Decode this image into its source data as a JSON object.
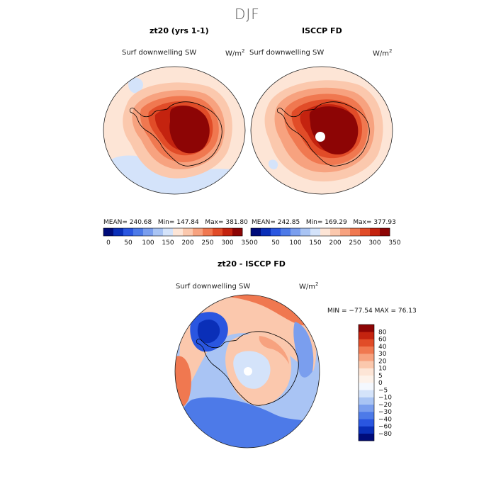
{
  "season_title": "DJF",
  "panels": [
    {
      "title": "zt20 (yrs 1-1)",
      "variable": "Surf downwelling SW",
      "units_base": "W/m",
      "units_exp": "2",
      "mean_label": "MEAN=",
      "mean": "240.68",
      "min_label": "Min=",
      "min": "147.84",
      "max_label": "Max=",
      "max": "381.80"
    },
    {
      "title": "ISCCP FD",
      "variable": "Surf downwelling SW",
      "units_base": "W/m",
      "units_exp": "2",
      "mean_label": "MEAN=",
      "mean": "242.85",
      "min_label": "Min=",
      "min": "169.29",
      "max_label": "Max=",
      "max": "377.93"
    }
  ],
  "abs_colorbar": {
    "colors": [
      "#000c7a",
      "#0a2fb8",
      "#2a56e0",
      "#4d7ae8",
      "#7a9eee",
      "#a9c4f4",
      "#d4e3fa",
      "#fde5d6",
      "#fbc8ad",
      "#f7a27f",
      "#f07850",
      "#e14c28",
      "#c4230f",
      "#8d0505"
    ],
    "tick_labels": [
      "0",
      "50",
      "100",
      "150",
      "200",
      "250",
      "300",
      "350"
    ]
  },
  "diff_panel": {
    "title": "zt20 - ISCCP FD",
    "variable": "Surf downwelling SW",
    "units_base": "W/m",
    "units_exp": "2",
    "stats_text": "MIN = −77.54 MAX =  76.13"
  },
  "diff_colorbar": {
    "colors": [
      "#000c7a",
      "#0a2fb8",
      "#2a56e0",
      "#4d7ae8",
      "#7a9eee",
      "#a9c4f4",
      "#d4e3fa",
      "#f4f8fe",
      "#fdf2ea",
      "#fde5d6",
      "#fbc8ad",
      "#f7a27f",
      "#f07850",
      "#e14c28",
      "#c4230f",
      "#8d0505"
    ],
    "tick_labels": [
      "80",
      "60",
      "40",
      "30",
      "20",
      "10",
      "5",
      "0",
      "−5",
      "−10",
      "−20",
      "−30",
      "−40",
      "−60",
      "−80"
    ]
  }
}
